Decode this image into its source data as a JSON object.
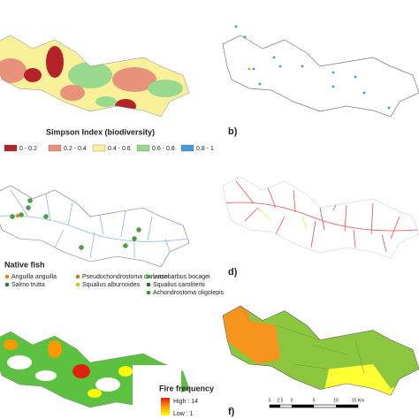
{
  "panel_a": {
    "legend_title": "Simpson Index (biodiversity)",
    "legend": [
      {
        "label": "0 - 0.2",
        "color": "#b5232a"
      },
      {
        "label": "0.2 - 0.4",
        "color": "#e8927c"
      },
      {
        "label": "0.4 - 0.6",
        "color": "#fbf09a"
      },
      {
        "label": "0.6 - 0.8",
        "color": "#98d98e"
      },
      {
        "label": "0.8 - 1",
        "color": "#4a9ad8"
      }
    ]
  },
  "panel_b": {
    "label": "b)"
  },
  "panel_c": {
    "legend_title": "Native fish",
    "legend": [
      {
        "label": "Anguilla anguilla",
        "color": "#e2861c"
      },
      {
        "label": "Salmo trutta",
        "color": "#2e7d2e"
      },
      {
        "label": "Pseudochondrostoma duriense",
        "color": "#c7801f"
      },
      {
        "label": "Squalius alburnoides",
        "color": "#d8c21a"
      },
      {
        "label": "Luciobarbus bocagei",
        "color": "#44a838"
      },
      {
        "label": "Squalius carolitertii",
        "color": "#2a6a2a"
      },
      {
        "label": "Achondrostoma oligolepis",
        "color": "#38943a"
      }
    ]
  },
  "panel_d": {
    "label": "d)"
  },
  "panel_e": {
    "legend_title": "Fire frequency",
    "high": "High : 14",
    "low": "Low : 1"
  },
  "panel_f": {
    "label": "f)",
    "scale_labels": [
      "5",
      "2.5",
      "0",
      "5",
      "10",
      "15 Km"
    ]
  }
}
